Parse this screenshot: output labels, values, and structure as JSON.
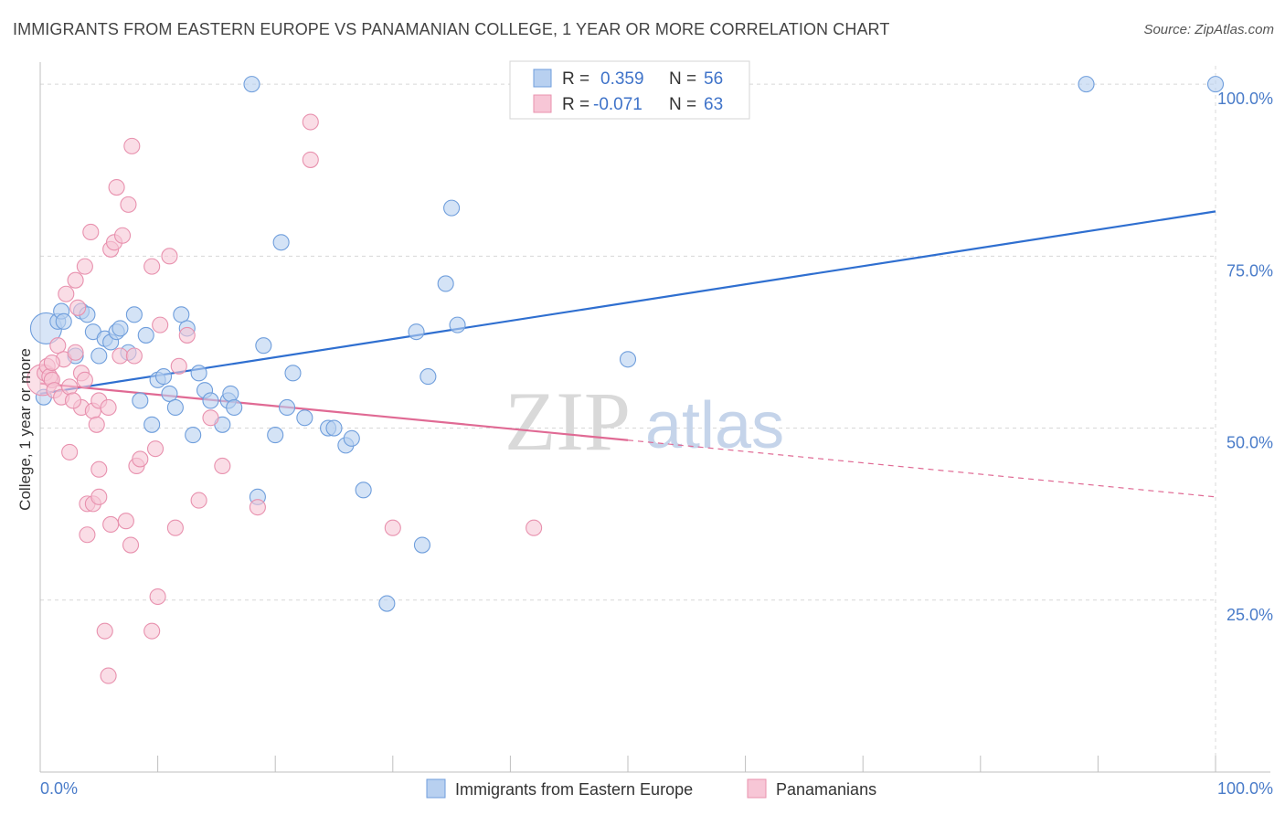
{
  "title": "IMMIGRANTS FROM EASTERN EUROPE VS PANAMANIAN COLLEGE, 1 YEAR OR MORE CORRELATION CHART",
  "source": "Source: ZipAtlas.com",
  "watermark": {
    "zip": "ZIP",
    "atlas": "atlas"
  },
  "legend": {
    "r_label": "R =",
    "n_label": "N =",
    "rows": [
      {
        "name": "Immigrants from Eastern Europe",
        "r": "0.359",
        "n": "56"
      },
      {
        "name": "Panamanians",
        "r": "-0.071",
        "n": "63"
      }
    ]
  },
  "colors": {
    "blue_fill": "#b8d0f0",
    "blue_stroke": "#6f9edc",
    "blue_line": "#2f6fd0",
    "pink_fill": "#f7c6d6",
    "pink_stroke": "#e891ae",
    "pink_line": "#e06a94",
    "grid": "#d8d8d8",
    "axis_text": "#4a7cc9"
  },
  "chart_data": {
    "type": "scatter",
    "xlabel": "",
    "ylabel": "College, 1 year or more",
    "xlim": [
      0,
      100
    ],
    "ylim": [
      0,
      104
    ],
    "x_tick_labels": [
      "0.0%",
      "100.0%"
    ],
    "y_ticks": [
      {
        "value": 25,
        "label": "25.0%"
      },
      {
        "value": 50,
        "label": "50.0%"
      },
      {
        "value": 75,
        "label": "75.0%"
      },
      {
        "value": 100,
        "label": "100.0%"
      }
    ],
    "grid": true,
    "legend_position": "top-center",
    "series": [
      {
        "name": "Immigrants from Eastern Europe",
        "color": "blue",
        "trend": {
          "x0": 0,
          "y0": 55.0,
          "x1": 100,
          "y1": 81.5,
          "solid_until": 100
        },
        "points": [
          [
            0.3,
            54.5
          ],
          [
            0.5,
            64.5
          ],
          [
            1.5,
            65.5
          ],
          [
            1.8,
            67
          ],
          [
            2.0,
            65.5
          ],
          [
            3.0,
            60.5
          ],
          [
            3.5,
            67
          ],
          [
            4.0,
            66.5
          ],
          [
            4.5,
            64
          ],
          [
            5.0,
            60.5
          ],
          [
            5.5,
            63
          ],
          [
            6.0,
            62.5
          ],
          [
            6.5,
            64
          ],
          [
            6.8,
            64.5
          ],
          [
            7.5,
            61
          ],
          [
            8.0,
            66.5
          ],
          [
            8.5,
            54
          ],
          [
            9.0,
            63.5
          ],
          [
            9.5,
            50.5
          ],
          [
            10.0,
            57
          ],
          [
            10.5,
            57.5
          ],
          [
            11.0,
            55
          ],
          [
            11.5,
            53
          ],
          [
            12.0,
            66.5
          ],
          [
            12.5,
            64.5
          ],
          [
            13.0,
            49
          ],
          [
            13.5,
            58
          ],
          [
            14.0,
            55.5
          ],
          [
            14.5,
            54
          ],
          [
            15.5,
            50.5
          ],
          [
            16.0,
            54
          ],
          [
            16.2,
            55
          ],
          [
            16.5,
            53
          ],
          [
            18.0,
            100
          ],
          [
            18.5,
            40
          ],
          [
            19.0,
            62
          ],
          [
            20.0,
            49
          ],
          [
            20.5,
            77
          ],
          [
            21.0,
            53
          ],
          [
            21.5,
            58
          ],
          [
            22.5,
            51.5
          ],
          [
            24.5,
            50
          ],
          [
            25.0,
            50
          ],
          [
            26.0,
            47.5
          ],
          [
            26.5,
            48.5
          ],
          [
            27.5,
            41
          ],
          [
            29.5,
            24.5
          ],
          [
            32.0,
            64
          ],
          [
            32.5,
            33
          ],
          [
            33.0,
            57.5
          ],
          [
            34.5,
            71
          ],
          [
            35.0,
            82
          ],
          [
            35.5,
            65
          ],
          [
            50.0,
            60
          ],
          [
            89.0,
            100
          ],
          [
            100.0,
            100
          ]
        ]
      },
      {
        "name": "Panamanians",
        "color": "pink",
        "trend": {
          "x0": 0,
          "y0": 56.5,
          "x1": 100,
          "y1": 40.0,
          "solid_until": 50
        },
        "points": [
          [
            0.2,
            57
          ],
          [
            0.4,
            58
          ],
          [
            0.6,
            59
          ],
          [
            0.8,
            57.5
          ],
          [
            1.0,
            57
          ],
          [
            1.2,
            55.5
          ],
          [
            1.5,
            62
          ],
          [
            1.8,
            54.5
          ],
          [
            2.0,
            60
          ],
          [
            2.2,
            69.5
          ],
          [
            2.5,
            56
          ],
          [
            2.5,
            46.5
          ],
          [
            3.0,
            61
          ],
          [
            3.2,
            67.5
          ],
          [
            3.5,
            58
          ],
          [
            3.0,
            71.5
          ],
          [
            3.5,
            53
          ],
          [
            3.8,
            73.5
          ],
          [
            4.0,
            39
          ],
          [
            4.0,
            34.5
          ],
          [
            4.3,
            78.5
          ],
          [
            4.5,
            39
          ],
          [
            4.5,
            52.5
          ],
          [
            4.8,
            50.5
          ],
          [
            5.0,
            54
          ],
          [
            5.0,
            44
          ],
          [
            5.0,
            40
          ],
          [
            5.5,
            20.5
          ],
          [
            5.8,
            14
          ],
          [
            5.8,
            53
          ],
          [
            6.0,
            76
          ],
          [
            6.0,
            36
          ],
          [
            6.3,
            77
          ],
          [
            6.5,
            85
          ],
          [
            6.8,
            60.5
          ],
          [
            7.0,
            78
          ],
          [
            7.3,
            36.5
          ],
          [
            7.5,
            82.5
          ],
          [
            7.7,
            33
          ],
          [
            7.8,
            91
          ],
          [
            8.0,
            60.5
          ],
          [
            8.2,
            44.5
          ],
          [
            8.5,
            45.5
          ],
          [
            9.5,
            73.5
          ],
          [
            9.5,
            20.5
          ],
          [
            9.8,
            47
          ],
          [
            10.0,
            25.5
          ],
          [
            10.2,
            65
          ],
          [
            11.0,
            75
          ],
          [
            11.5,
            35.5
          ],
          [
            11.8,
            59
          ],
          [
            12.5,
            63.5
          ],
          [
            13.5,
            39.5
          ],
          [
            14.5,
            51.5
          ],
          [
            15.5,
            44.5
          ],
          [
            18.5,
            38.5
          ],
          [
            23.0,
            94.5
          ],
          [
            23.0,
            89
          ],
          [
            30.0,
            35.5
          ],
          [
            42.0,
            35.5
          ],
          [
            2.8,
            54
          ],
          [
            1.0,
            59.5
          ],
          [
            3.8,
            57
          ]
        ]
      }
    ]
  },
  "bottom_legend": [
    "Immigrants from Eastern Europe",
    "Panamanians"
  ]
}
